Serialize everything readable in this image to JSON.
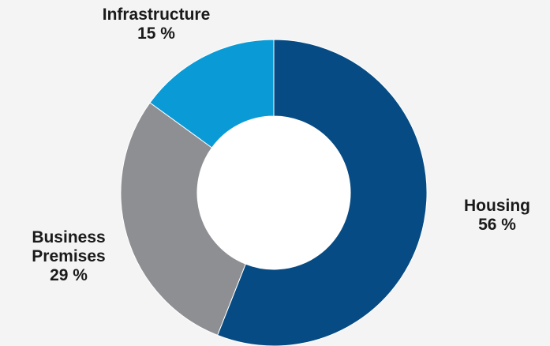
{
  "chart_data": {
    "type": "pie",
    "donut": true,
    "start_angle_deg": 0,
    "direction": "clockwise",
    "slices": [
      {
        "name": "Housing",
        "value": 56,
        "value_label": "56 %",
        "color": "#064b83"
      },
      {
        "name": "Business Premises",
        "value": 29,
        "value_label": "29 %",
        "color": "#8e8f93"
      },
      {
        "name": "Infrastructure",
        "value": 15,
        "value_label": "15 %",
        "color": "#0a9bd7"
      }
    ],
    "labels": {
      "housing": {
        "line1": "Housing",
        "value": "56 %"
      },
      "business": {
        "line1": "Business",
        "line2": "Premises",
        "value": "29 %"
      },
      "infrastructure": {
        "line1": "Infrastructure",
        "value": "15 %"
      }
    }
  }
}
